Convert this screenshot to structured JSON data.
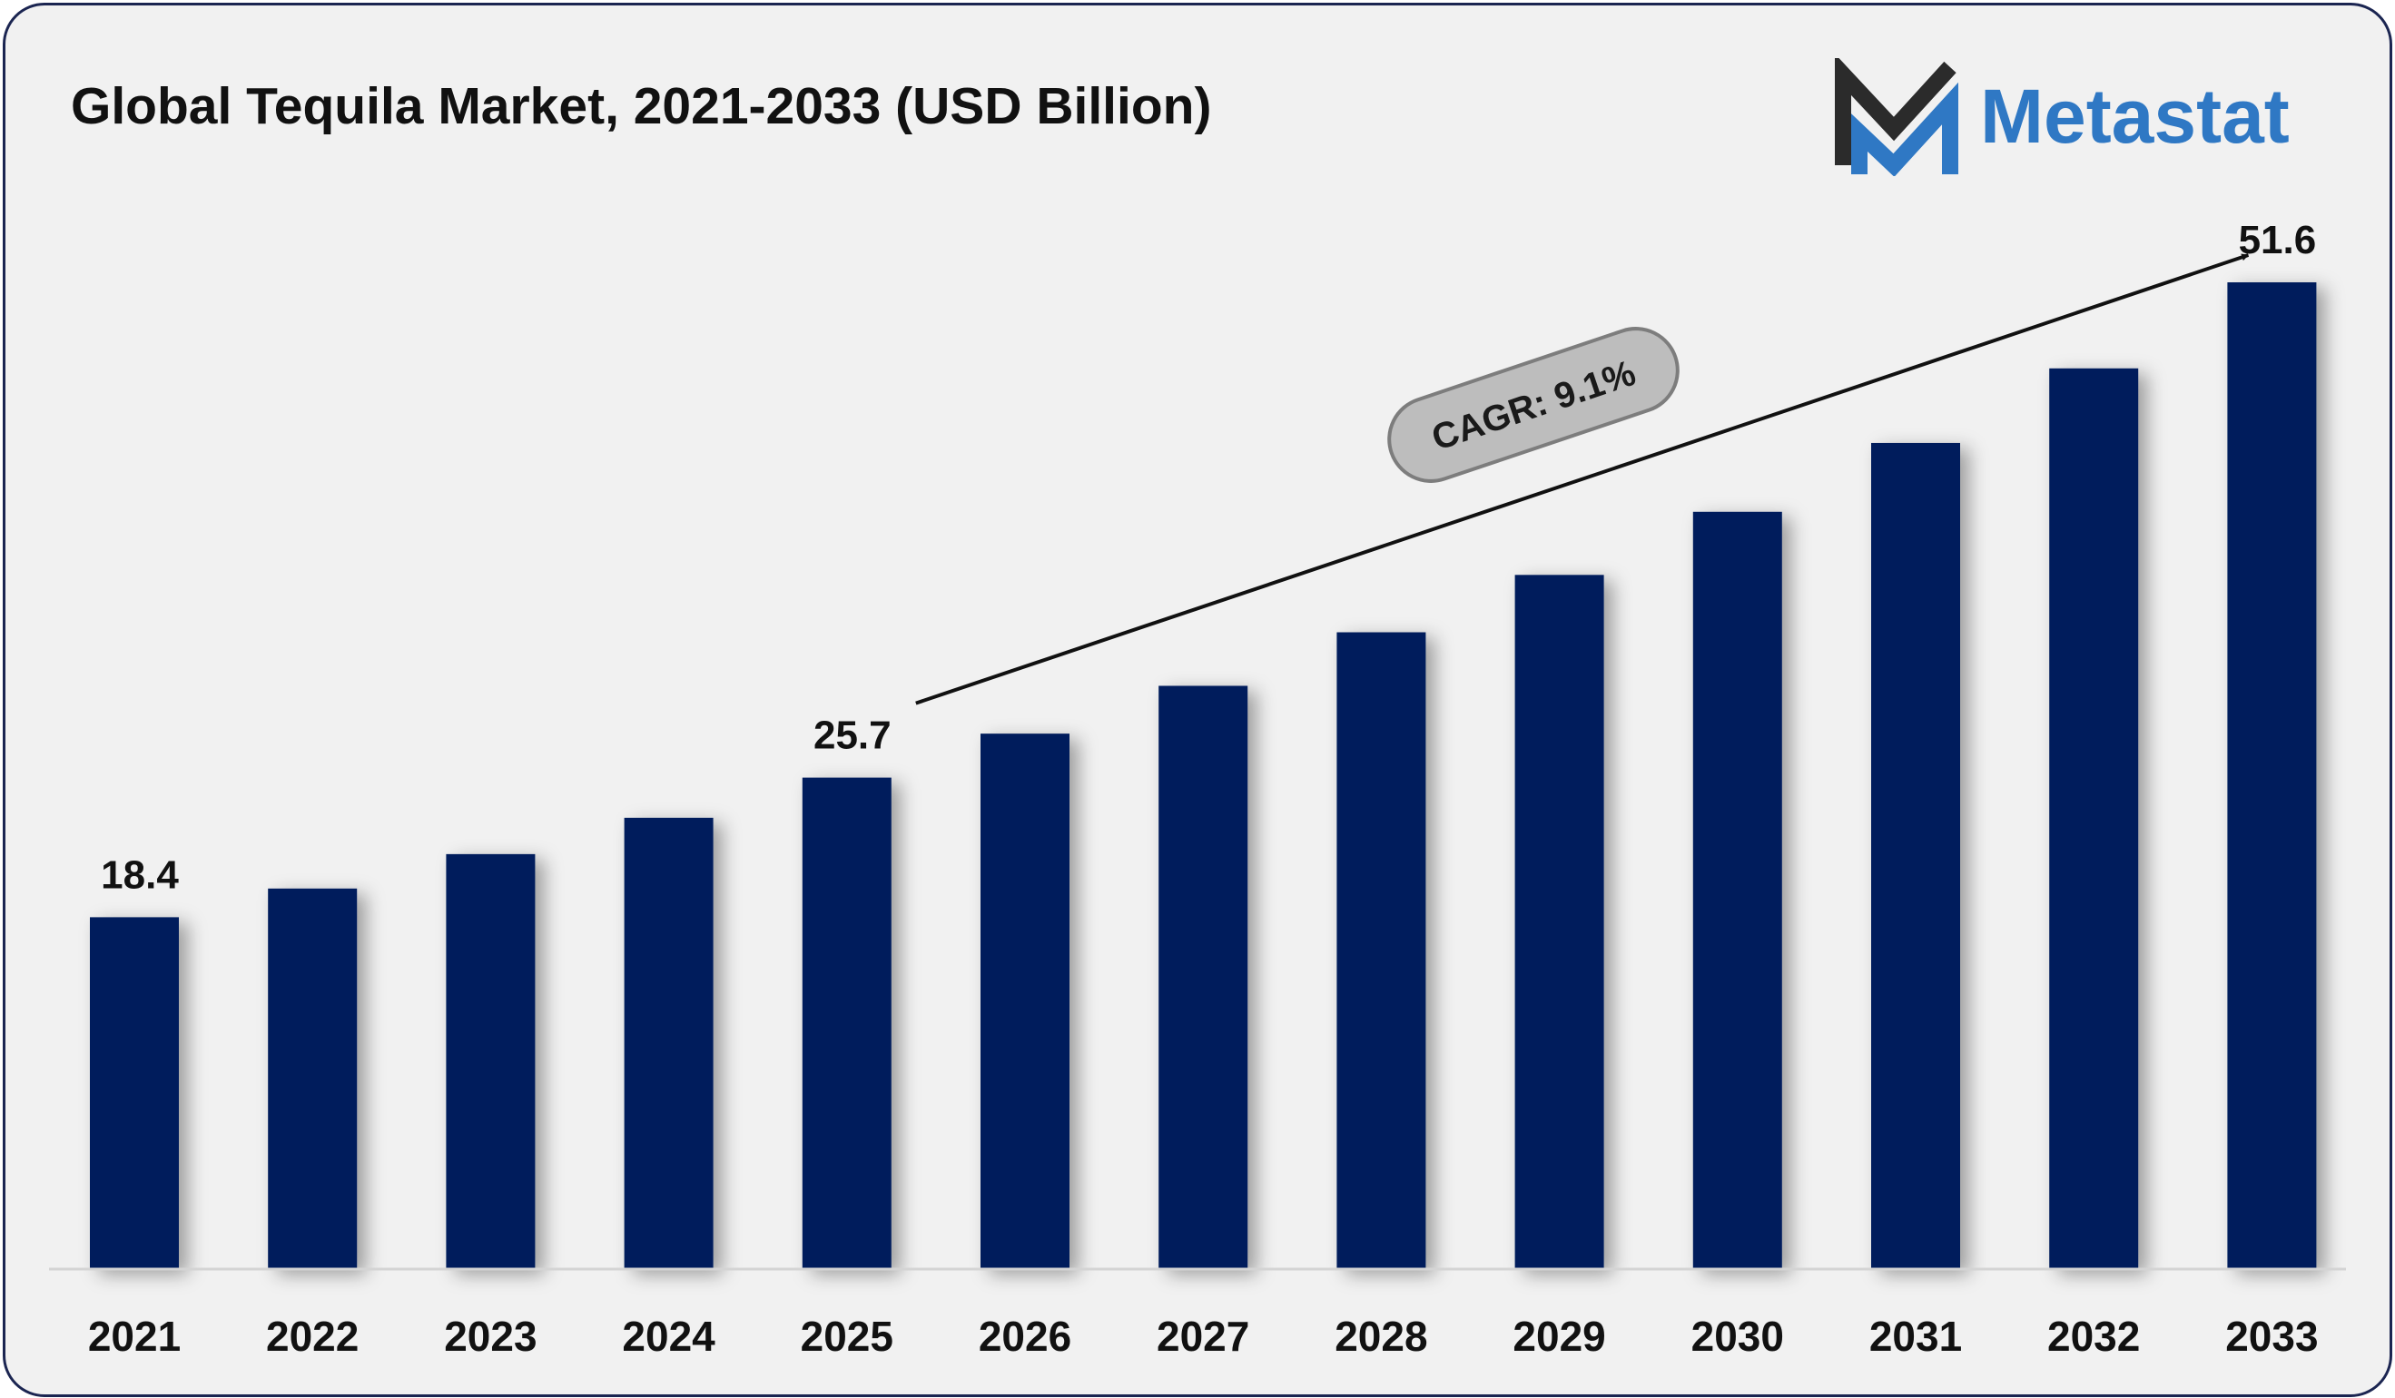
{
  "chart_data": {
    "type": "bar",
    "title": "Global Tequila Market, 2021-2033 (USD Billion)",
    "categories": [
      "2021",
      "2022",
      "2023",
      "2024",
      "2025",
      "2026",
      "2027",
      "2028",
      "2029",
      "2030",
      "2031",
      "2032",
      "2033"
    ],
    "values": [
      18.4,
      19.9,
      21.7,
      23.6,
      25.7,
      28.0,
      30.5,
      33.3,
      36.3,
      39.6,
      43.2,
      47.1,
      51.6
    ],
    "data_labels": [
      {
        "category": "2021",
        "text": "18.4"
      },
      {
        "category": "2025",
        "text": "25.7"
      },
      {
        "category": "2033",
        "text": "51.6"
      }
    ],
    "annotation": {
      "text": "CAGR: 9.1%",
      "from_category": "2025",
      "to_category": "2033"
    },
    "xlabel": "",
    "ylabel": "",
    "ylim": [
      0,
      55
    ],
    "grid": false,
    "bar_color": "#041e5c"
  },
  "brand": {
    "name": "Metastat",
    "text_color": "#2f78c4",
    "mark_colors": [
      "#2b2b2b",
      "#2f78c4"
    ],
    "logo_icon": "metastat-m-logo-icon"
  },
  "frame_border_color": "#1b2551",
  "background_color": "#f1f1f1"
}
